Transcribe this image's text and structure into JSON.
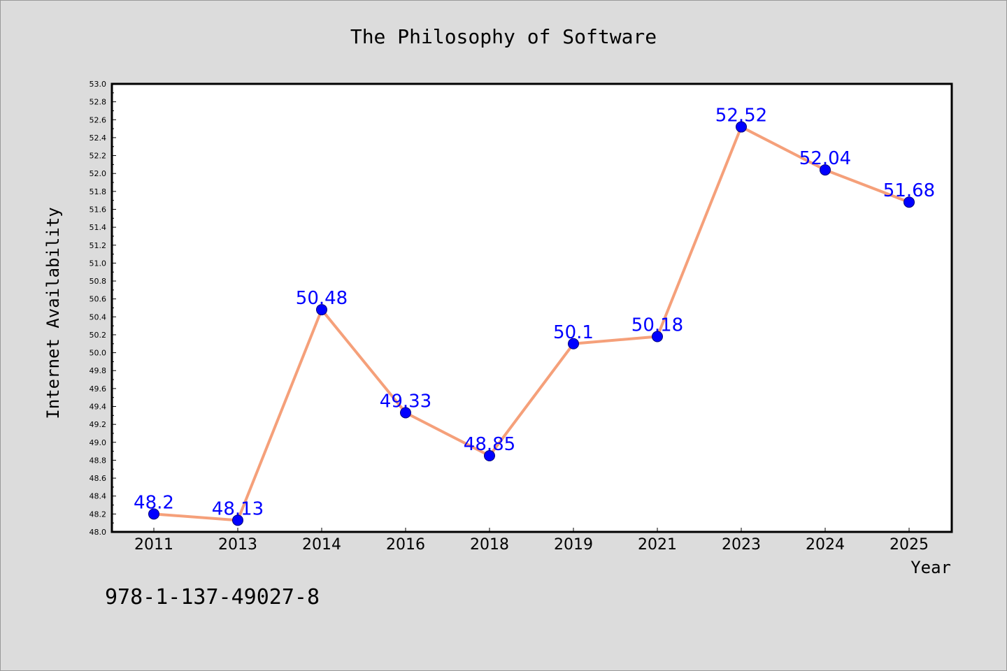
{
  "chart_data": {
    "type": "line",
    "title": "The Philosophy of Software",
    "xlabel": "Year",
    "ylabel": "Internet Availability",
    "categories": [
      "2011",
      "2013",
      "2014",
      "2016",
      "2018",
      "2019",
      "2021",
      "2023",
      "2024",
      "2025"
    ],
    "series": [
      {
        "values": [
          48.2,
          48.13,
          50.48,
          49.33,
          48.85,
          50.1,
          50.18,
          52.52,
          52.04,
          51.68
        ],
        "value_labels": [
          "48.2",
          "48.13",
          "50.48",
          "49.33",
          "48.85",
          "50.1",
          "50.18",
          "52.52",
          "52.04",
          "51.68"
        ]
      }
    ],
    "ylim": [
      48.0,
      53.0
    ],
    "y_ticks": [
      "48.0",
      "48.2",
      "48.4",
      "48.6",
      "48.8",
      "49.0",
      "49.2",
      "49.4",
      "49.6",
      "49.8",
      "50.0",
      "50.2",
      "50.4",
      "50.6",
      "50.8",
      "51.0",
      "51.2",
      "51.4",
      "51.6",
      "51.8",
      "52.0",
      "52.2",
      "52.4",
      "52.6",
      "52.8",
      "53.0"
    ],
    "grid": false,
    "legend": "none",
    "annotation": "978-1-137-49027-8",
    "colors": {
      "figure_background": "#dcdcdc",
      "plot_background": "#ffffff",
      "line": "#f5a07a",
      "marker": "#0000ff",
      "data_label": "#0000ff",
      "text": "#000000"
    }
  }
}
